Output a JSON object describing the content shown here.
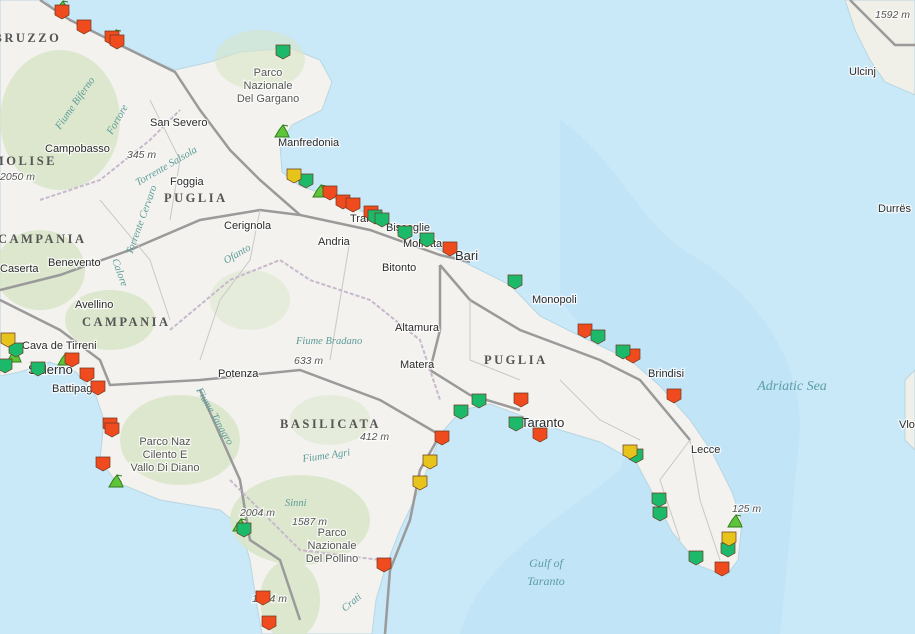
{
  "map": {
    "colors": {
      "sea": "#c9e8f8",
      "sea_deep": "#bfe2f6",
      "land": "#f3f2ee",
      "forest": "#d8e5c8",
      "road": "#9a9a9a",
      "boundary": "#c8b8cc",
      "marker_green": "#1db96a",
      "marker_red": "#f04b1f",
      "marker_yellow": "#e6c41c",
      "boat_icon": "#5fc43a"
    },
    "cities": [
      "San Severo",
      "Campobasso",
      "Foggia",
      "Manfredonia",
      "Cerignola",
      "Andria",
      "Trani",
      "Bisceglie",
      "Molfetta",
      "Bari",
      "Bitonto",
      "Benevento",
      "Caserta",
      "Avellino",
      "Cava de Tirreni",
      "Salerno",
      "Battipaglia",
      "Potenza",
      "Altamura",
      "Matera",
      "Monopoli",
      "Taranto",
      "Brindisi",
      "Lecce",
      "Ulcinj",
      "Durrës",
      "Vlorë"
    ],
    "regions": [
      "ABRUZZO",
      "MOLISE",
      "PUGLIA",
      "CAMPANIA",
      "CAMPANIA",
      "PUGLIA",
      "BASILICATA"
    ],
    "parks": [
      "Parco",
      "Nazionale",
      "Del Gargano",
      "Parco Naz",
      "Cilento E",
      "Vallo Di Diano",
      "Parco",
      "Nazionale",
      "Del Pollino"
    ],
    "elevations": [
      "345 m",
      "2050 m",
      "633 m",
      "412 m",
      "2004 m",
      "1587 m",
      "1594 m",
      "125 m",
      "1592 m"
    ],
    "rivers": [
      "Fiume Biferno",
      "Fortore",
      "Torrente Salsola",
      "Torrente Cervaro",
      "Ofanto",
      "Fiume Bradano",
      "Fiume Tanagro",
      "Fiume Agri",
      "Sinni",
      "Crati",
      "Calore"
    ],
    "seas": [
      "Adriatic Sea",
      "Gulf of",
      "Taranto"
    ],
    "markers": [
      "red",
      "red",
      "red",
      "red",
      "red",
      "red",
      "red",
      "red",
      "red",
      "red",
      "red",
      "red",
      "red",
      "red",
      "red",
      "red",
      "red",
      "red",
      "red",
      "red",
      "red",
      "red",
      "red",
      "red",
      "red",
      "green",
      "green",
      "green",
      "green",
      "green",
      "green",
      "green",
      "green",
      "green",
      "green",
      "green",
      "green",
      "green",
      "green",
      "green",
      "green",
      "green",
      "green",
      "green",
      "green",
      "green",
      "yellow",
      "yellow",
      "yellow",
      "yellow",
      "yellow",
      "yellow"
    ],
    "boat_icons": 9
  }
}
